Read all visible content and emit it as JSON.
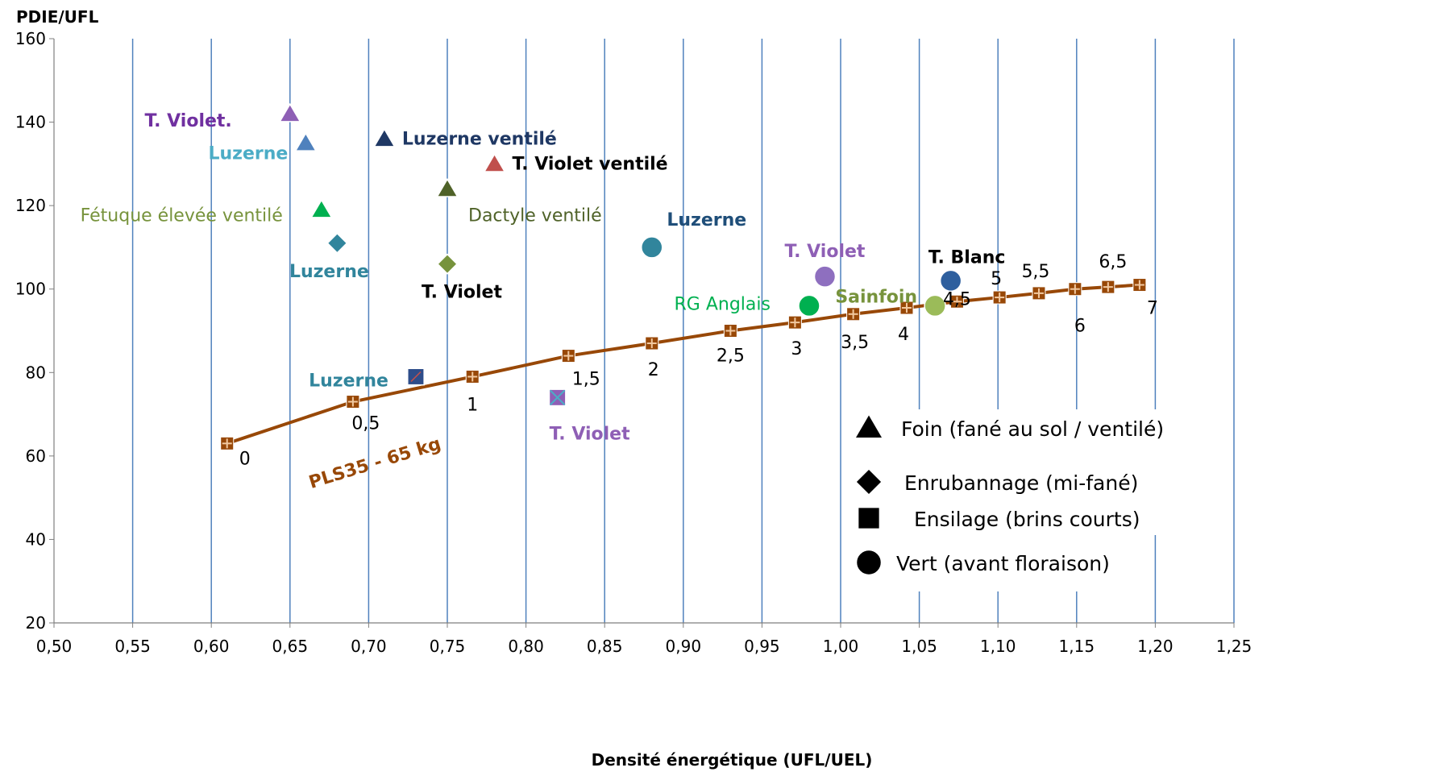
{
  "chart_data": {
    "type": "scatter",
    "xlabel": "Densité énergétique (UFL/UEL)",
    "ylabel": "PDIE/UFL",
    "xlim": [
      0.5,
      1.25
    ],
    "ylim": [
      20,
      160
    ],
    "x_ticks": [
      "0,50",
      "0,55",
      "0,60",
      "0,65",
      "0,70",
      "0,75",
      "0,80",
      "0,85",
      "0,90",
      "0,95",
      "1,00",
      "1,05",
      "1,10",
      "1,15",
      "1,20",
      "1,25"
    ],
    "y_ticks": [
      "20",
      "40",
      "60",
      "80",
      "100",
      "120",
      "140",
      "160"
    ],
    "grid": "vertical",
    "forages": [
      {
        "label": "T. Violet.",
        "shape": "triangle",
        "x": 0.65,
        "y": 142,
        "color": "#8e5fb5",
        "label_color": "#7030a0"
      },
      {
        "label": "Luzerne",
        "shape": "triangle",
        "x": 0.66,
        "y": 135,
        "color": "#4f81bd",
        "label_color": "#4bacc6"
      },
      {
        "label": "Luzerne ventilé",
        "shape": "triangle",
        "x": 0.71,
        "y": 136,
        "color": "#1f3864",
        "label_color": "#1f3864"
      },
      {
        "label": "T. Violet ventilé",
        "shape": "triangle",
        "x": 0.78,
        "y": 130,
        "color": "#c0504d",
        "label_color": "#000000"
      },
      {
        "label": "Dactyle ventilé",
        "shape": "triangle",
        "x": 0.75,
        "y": 124,
        "color": "#4f6228",
        "label_color": "#4f6228"
      },
      {
        "label": "Fétuque élevée  ventilé",
        "shape": "triangle",
        "x": 0.67,
        "y": 119,
        "color": "#00b050",
        "label_color": "#77933c"
      },
      {
        "label": "Luzerne",
        "shape": "diamond",
        "x": 0.68,
        "y": 111,
        "color": "#31859c",
        "label_color": "#31859c"
      },
      {
        "label": "T. Violet",
        "shape": "diamond",
        "x": 0.75,
        "y": 106,
        "color": "#77933c",
        "label_color": "#000000"
      },
      {
        "label": "Luzerne",
        "shape": "square",
        "x": 0.73,
        "y": 79,
        "color": "#2e4d8a",
        "label_color": "#31859c"
      },
      {
        "label": "T. Violet",
        "shape": "square",
        "x": 0.82,
        "y": 74,
        "color": "#8e5fb5",
        "label_color": "#8e5fb5"
      },
      {
        "label": "Luzerne",
        "shape": "circle",
        "x": 0.88,
        "y": 110,
        "color": "#31859c",
        "label_color": "#1f4e79"
      },
      {
        "label": "T. Violet",
        "shape": "circle",
        "x": 0.99,
        "y": 103,
        "color": "#8e6fbf",
        "label_color": "#8e5fb5"
      },
      {
        "label": "RG Anglais",
        "shape": "circle",
        "x": 0.98,
        "y": 96,
        "color": "#00b050",
        "label_color": "#00b050"
      },
      {
        "label": "Sainfoin",
        "shape": "circle",
        "x": 1.06,
        "y": 96,
        "color": "#9bbb59",
        "label_color": "#77933c"
      },
      {
        "label": "T. Blanc",
        "shape": "circle",
        "x": 1.07,
        "y": 102,
        "color": "#2e5f9e",
        "label_color": "#000000"
      }
    ],
    "series": [
      {
        "name": "PLS35 - 65 kg",
        "color": "#984807",
        "x": [
          0.61,
          0.69,
          0.766,
          0.827,
          0.88,
          0.93,
          0.971,
          1.008,
          1.042,
          1.074,
          1.101,
          1.126,
          1.149,
          1.17,
          1.19
        ],
        "y": [
          63,
          73,
          79,
          84,
          87,
          90,
          92,
          94,
          95.5,
          97,
          98,
          99,
          100,
          100.5,
          101
        ],
        "levels": [
          "0",
          "0,5",
          "1",
          "1,5",
          "2",
          "2,5",
          "3",
          "3,5",
          "4",
          "4,5",
          "5",
          "5,5",
          "6",
          "6,5",
          "7"
        ]
      }
    ],
    "legend": {
      "placement": "bottom-right",
      "entries": [
        {
          "shape": "triangle",
          "label": "Foin (fané au sol / ventilé)"
        },
        {
          "shape": "diamond",
          "label": "Enrubannage (mi-fané)"
        },
        {
          "shape": "square",
          "label": "Ensilage (brins courts)"
        },
        {
          "shape": "circle",
          "label": "Vert (avant floraison)"
        }
      ]
    }
  }
}
